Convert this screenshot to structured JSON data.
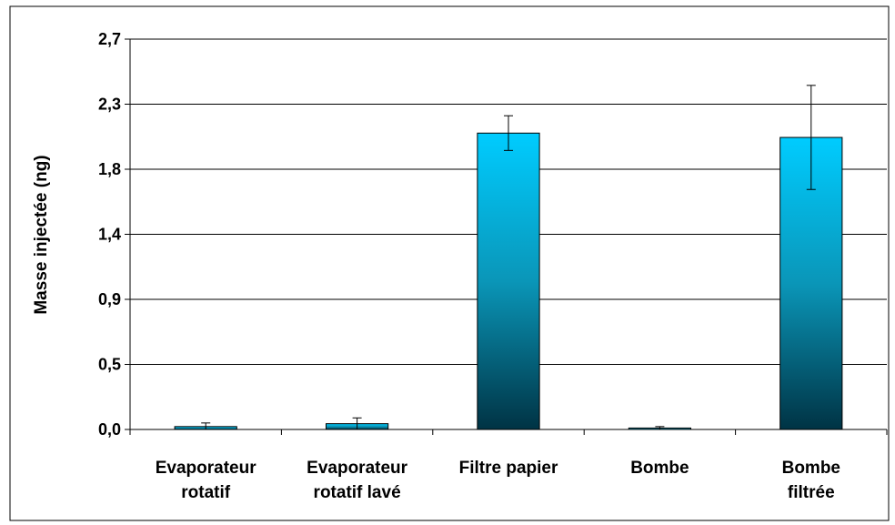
{
  "chart_data": {
    "type": "bar",
    "title": "",
    "xlabel": "",
    "ylabel": "Masse injectée (ng)",
    "categories": [
      [
        "Evaporateur",
        "rotatif"
      ],
      [
        "Evaporateur",
        "rotatif lavé"
      ],
      [
        "Filtre papier"
      ],
      [
        "Bombe"
      ],
      [
        "Bombe",
        "filtrée"
      ]
    ],
    "values": [
      0.02,
      0.04,
      2.05,
      0.01,
      2.02
    ],
    "error_bars": [
      0.025,
      0.04,
      0.12,
      0.01,
      0.36
    ],
    "ylim": [
      0,
      2.7
    ],
    "yticks": [
      {
        "value": 0.0,
        "label": "0,0"
      },
      {
        "value": 0.45,
        "label": "0,5"
      },
      {
        "value": 0.9,
        "label": "0,9"
      },
      {
        "value": 1.35,
        "label": "1,4"
      },
      {
        "value": 1.8,
        "label": "1,8"
      },
      {
        "value": 2.25,
        "label": "2,3"
      },
      {
        "value": 2.7,
        "label": "2,7"
      }
    ],
    "grid": true,
    "legend": "none",
    "bar_gradient": {
      "top": "#00ccff",
      "middle": "#0a96b8",
      "bottom": "#003344"
    },
    "bar_outline": "#000000"
  }
}
